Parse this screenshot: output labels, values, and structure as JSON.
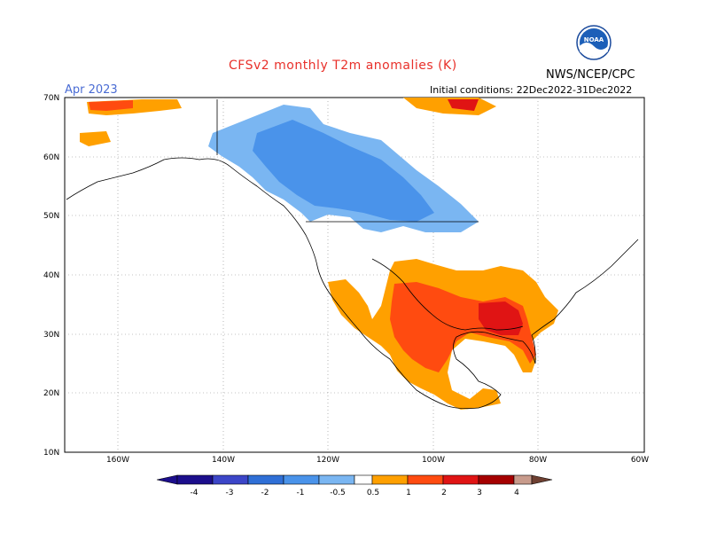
{
  "header": {
    "title": "CFSv2 monthly T2m anomalies (K)",
    "month": "Apr 2023",
    "initial_conditions": "Initial conditions: 22Dec2022-31Dec2022",
    "agency": "NWS/NCEP/CPC",
    "logo_text": "NOAA"
  },
  "axes": {
    "lat_labels": [
      "70N",
      "60N",
      "50N",
      "40N",
      "30N",
      "20N",
      "10N"
    ],
    "lon_labels": [
      "160W",
      "140W",
      "120W",
      "100W",
      "80W",
      "60W"
    ]
  },
  "colorbar": {
    "labels": [
      "-4",
      "-3",
      "-2",
      "-1",
      "-0.5",
      "0.5",
      "1",
      "2",
      "3",
      "4"
    ],
    "colors": [
      "#1c0e8c",
      "#3c46c8",
      "#2f6fd6",
      "#4a93ea",
      "#7ab6f2",
      "#ffffff",
      "#ffa000",
      "#ff4b10",
      "#e01414",
      "#a50000",
      "#c89b8c",
      "#6e4032"
    ]
  },
  "colors": {
    "pos_weak": "#ffa000",
    "pos_mid": "#ff4b10",
    "pos_strong": "#e01414",
    "neg_weak": "#7ab6f2",
    "neg_mid": "#4a93ea"
  }
}
